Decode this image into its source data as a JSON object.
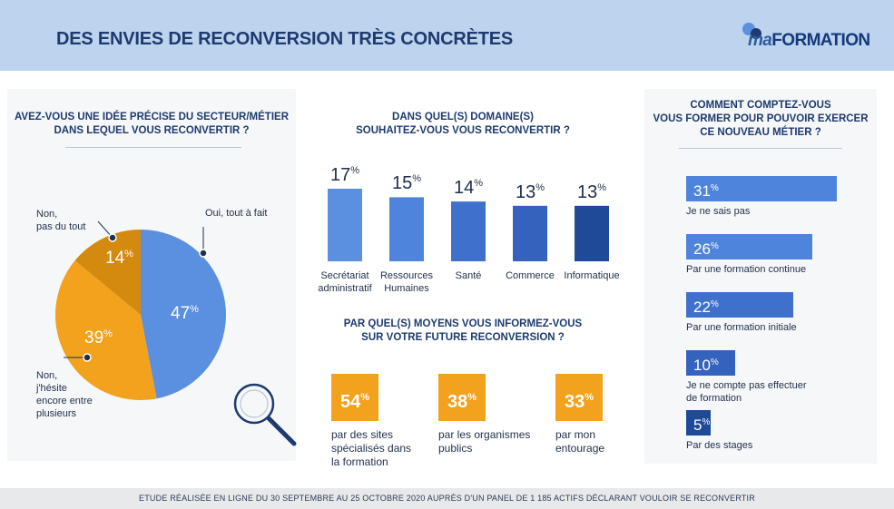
{
  "header": {
    "title": "DES ENVIES DE RECONVERSION TRÈS CONCRÈTES",
    "logo_prefix": "ma",
    "logo_main": "FORMATION"
  },
  "colors": {
    "header_bg": "#bdd3ee",
    "blue_main": "#5b8fe0",
    "orange_main": "#f2a21c",
    "orange_dark": "#d48a0f",
    "navy": "#1e3a6e"
  },
  "question1": {
    "title_line1": "AVEZ-VOUS UNE IDÉE PRÉCISE DU SECTEUR/MÉTIER",
    "title_line2": "DANS LEQUEL VOUS RECONVERTIR ?",
    "slices": [
      {
        "label_lines": [
          "Oui, tout à fait"
        ],
        "value": 47,
        "display": "47",
        "color": "#5b8fe0"
      },
      {
        "label_lines": [
          "Non,",
          "j'hésite",
          "encore entre",
          "plusieurs"
        ],
        "value": 39,
        "display": "39",
        "color": "#f2a21c"
      },
      {
        "label_lines": [
          "Non,",
          "pas du tout"
        ],
        "value": 14,
        "display": "14",
        "color": "#d48a0f"
      }
    ],
    "percent_sign": "%",
    "icon": "magnifier-icon"
  },
  "chart_data": [
    {
      "type": "pie",
      "title": "AVEZ-VOUS UNE IDÉE PRÉCISE DU SECTEUR/MÉTIER DANS LEQUEL VOUS RECONVERTIR ?",
      "categories": [
        "Oui, tout à fait",
        "Non, j'hésite encore entre plusieurs",
        "Non, pas du tout"
      ],
      "values": [
        47,
        39,
        14
      ],
      "unit": "%"
    },
    {
      "type": "bar",
      "title": "DANS QUEL(S) DOMAINE(S) SOUHAITEZ-VOUS VOUS RECONVERTIR ?",
      "categories": [
        "Secrétariat administratif",
        "Ressources Humaines",
        "Santé",
        "Commerce",
        "Informatique"
      ],
      "values": [
        17,
        15,
        14,
        13,
        13
      ],
      "unit": "%",
      "ylim": [
        0,
        20
      ]
    },
    {
      "type": "bar",
      "title": "PAR QUEL(S) MOYENS VOUS INFORMEZ-VOUS SUR VOTRE FUTURE RECONVERSION ?",
      "categories": [
        "par des sites spécialisés dans la formation",
        "par les organismes publics",
        "par mon entourage"
      ],
      "values": [
        54,
        38,
        33
      ],
      "unit": "%"
    },
    {
      "type": "bar",
      "orientation": "horizontal",
      "title": "COMMENT COMPTEZ-VOUS VOUS FORMER POUR POUVOIR EXERCER CE NOUVEAU MÉTIER ?",
      "categories": [
        "Je ne sais pas",
        "Par une formation continue",
        "Par une formation initiale",
        "Je ne compte pas effectuer de formation",
        "Par des stages"
      ],
      "values": [
        31,
        26,
        22,
        10,
        5
      ],
      "unit": "%",
      "xlim": [
        0,
        31
      ]
    }
  ],
  "question2": {
    "title_line1": "DANS QUEL(S) DOMAINE(S)",
    "title_line2": "SOUHAITEZ-VOUS VOUS RECONVERTIR ?",
    "bars": [
      {
        "label_lines": [
          "Secrétariat",
          "administratif"
        ],
        "value": 17,
        "display": "17",
        "color": "#5b8fe0"
      },
      {
        "label_lines": [
          "Ressources",
          "Humaines"
        ],
        "value": 15,
        "display": "15",
        "color": "#4f84dc"
      },
      {
        "label_lines": [
          "Santé"
        ],
        "value": 14,
        "display": "14",
        "color": "#3f71cc"
      },
      {
        "label_lines": [
          "Commerce"
        ],
        "value": 13,
        "display": "13",
        "color": "#3462bd"
      },
      {
        "label_lines": [
          "Informatique"
        ],
        "value": 13,
        "display": "13",
        "color": "#1f4a98"
      }
    ],
    "max_value": 17
  },
  "question3": {
    "title_line1": "PAR QUEL(S) MOYENS VOUS INFORMEZ-VOUS",
    "title_line2": "SUR VOTRE FUTURE RECONVERSION ?",
    "items": [
      {
        "display": "54",
        "label_lines": [
          "par des sites",
          "spécialisés dans",
          "la formation"
        ]
      },
      {
        "display": "38",
        "label_lines": [
          "par les organismes",
          "publics"
        ]
      },
      {
        "display": "33",
        "label_lines": [
          "par mon",
          "entourage"
        ]
      }
    ]
  },
  "question4": {
    "title_line1": "COMMENT COMPTEZ-VOUS",
    "title_line2": "VOUS FORMER POUR POUVOIR EXERCER",
    "title_line3": "CE NOUVEAU MÉTIER ?",
    "bars": [
      {
        "value": 31,
        "display": "31",
        "label_lines": [
          "Je ne sais pas"
        ],
        "color": "#4f84dc"
      },
      {
        "value": 26,
        "display": "26",
        "label_lines": [
          "Par une formation continue"
        ],
        "color": "#4f84dc"
      },
      {
        "value": 22,
        "display": "22",
        "label_lines": [
          "Par une formation initiale"
        ],
        "color": "#3f71cc"
      },
      {
        "value": 10,
        "display": "10",
        "label_lines": [
          "Je ne compte pas effectuer",
          "de formation"
        ],
        "color": "#3462bd"
      },
      {
        "value": 5,
        "display": "5",
        "label_lines": [
          "Par des stages"
        ],
        "color": "#1f4a98"
      }
    ],
    "max_value": 31
  },
  "footer": {
    "text": "ETUDE RÉALISÉE EN LIGNE DU 30 SEPTEMBRE AU 25 OCTOBRE 2020 AUPRÈS D'UN PANEL DE 1 185 ACTIFS DÉCLARANT VOULOIR SE RECONVERTIR"
  }
}
